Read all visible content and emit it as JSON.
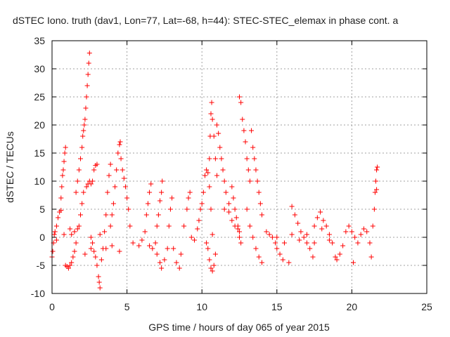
{
  "chart_data": {
    "type": "scatter",
    "title": "dSTEC Iono. truth (dav1, Lon=77, Lat=-68, h=44): STEC-STEC_elemax in phase cont. a",
    "xlabel": "GPS time / hours of day 065 of year 2015",
    "ylabel": "dSTEC  / TECUs",
    "xlim": [
      0,
      25
    ],
    "ylim": [
      -10,
      35
    ],
    "xticks": [
      0,
      5,
      10,
      15,
      20,
      25
    ],
    "yticks": [
      -10,
      -5,
      0,
      5,
      10,
      15,
      20,
      25,
      30,
      35
    ],
    "grid": true,
    "marker": "+",
    "color": "#ff0000",
    "series": [
      {
        "points": [
          [
            0.0,
            -3.5
          ],
          [
            0.05,
            -2.5
          ],
          [
            0.1,
            -1.0
          ],
          [
            0.15,
            0.5
          ],
          [
            0.2,
            1.0
          ],
          [
            0.3,
            2.0
          ],
          [
            0.4,
            3.5
          ],
          [
            0.5,
            4.5
          ],
          [
            0.6,
            4.8
          ],
          [
            0.6,
            7.0
          ],
          [
            0.65,
            9.0
          ],
          [
            0.7,
            11.0
          ],
          [
            0.75,
            12.0
          ],
          [
            0.8,
            13.5
          ],
          [
            0.85,
            15.0
          ],
          [
            0.9,
            16.0
          ],
          [
            0.9,
            -5.0
          ],
          [
            1.0,
            -5.2
          ],
          [
            1.1,
            -5.5
          ],
          [
            1.2,
            -5.0
          ],
          [
            1.3,
            -4.5
          ],
          [
            1.4,
            -3.5
          ],
          [
            1.5,
            -2.5
          ],
          [
            1.6,
            -1.0
          ],
          [
            1.3,
            0.5
          ],
          [
            1.5,
            1.0
          ],
          [
            1.7,
            1.5
          ],
          [
            1.8,
            2.0
          ],
          [
            1.9,
            4.0
          ],
          [
            2.0,
            6.0
          ],
          [
            2.1,
            8.0
          ],
          [
            1.6,
            8.0
          ],
          [
            1.7,
            10.0
          ],
          [
            1.8,
            12.0
          ],
          [
            1.9,
            14.0
          ],
          [
            2.0,
            16.0
          ],
          [
            2.05,
            18.0
          ],
          [
            2.1,
            19.0
          ],
          [
            2.15,
            20.0
          ],
          [
            2.2,
            21.0
          ],
          [
            2.25,
            23.0
          ],
          [
            2.3,
            25.0
          ],
          [
            2.35,
            27.0
          ],
          [
            2.4,
            29.0
          ],
          [
            2.45,
            31.0
          ],
          [
            2.5,
            32.8
          ],
          [
            2.3,
            9.0
          ],
          [
            2.4,
            9.5
          ],
          [
            2.5,
            10.0
          ],
          [
            2.6,
            9.5
          ],
          [
            2.7,
            10.0
          ],
          [
            2.8,
            12.0
          ],
          [
            2.9,
            12.8
          ],
          [
            3.0,
            13.0
          ],
          [
            2.6,
            0.0
          ],
          [
            2.7,
            -1.0
          ],
          [
            2.8,
            -2.5
          ],
          [
            2.9,
            -3.5
          ],
          [
            3.0,
            -5.0
          ],
          [
            3.1,
            -7.0
          ],
          [
            3.15,
            -8.0
          ],
          [
            3.2,
            -9.0
          ],
          [
            3.3,
            -4.0
          ],
          [
            3.4,
            -2.0
          ],
          [
            3.5,
            1.0
          ],
          [
            3.6,
            4.0
          ],
          [
            3.7,
            8.0
          ],
          [
            3.8,
            11.0
          ],
          [
            3.9,
            13.0
          ],
          [
            3.9,
            2.0
          ],
          [
            4.0,
            4.0
          ],
          [
            4.1,
            6.0
          ],
          [
            4.2,
            9.0
          ],
          [
            4.3,
            12.0
          ],
          [
            4.4,
            15.0
          ],
          [
            4.5,
            16.5
          ],
          [
            4.55,
            17.0
          ],
          [
            4.6,
            14.0
          ],
          [
            4.7,
            12.0
          ],
          [
            4.8,
            10.5
          ],
          [
            4.9,
            9.0
          ],
          [
            5.0,
            7.0
          ],
          [
            5.1,
            5.0
          ],
          [
            5.2,
            2.0
          ],
          [
            0.3,
            -0.5
          ],
          [
            0.8,
            0.5
          ],
          [
            1.2,
            1.5
          ],
          [
            2.2,
            -3.0
          ],
          [
            2.6,
            -2.0
          ],
          [
            3.2,
            0.5
          ],
          [
            3.6,
            -2.0
          ],
          [
            4.0,
            -1.5
          ],
          [
            4.5,
            -2.5
          ],
          [
            5.4,
            -1.0
          ],
          [
            5.8,
            -1.5
          ],
          [
            6.0,
            -0.5
          ],
          [
            6.2,
            1.0
          ],
          [
            6.3,
            4.0
          ],
          [
            6.4,
            6.0
          ],
          [
            6.5,
            8.0
          ],
          [
            6.6,
            9.5
          ],
          [
            6.5,
            -1.5
          ],
          [
            6.7,
            -2.0
          ],
          [
            6.9,
            -1.0
          ],
          [
            7.0,
            2.0
          ],
          [
            7.1,
            4.0
          ],
          [
            7.2,
            6.5
          ],
          [
            7.3,
            8.0
          ],
          [
            7.35,
            10.0
          ],
          [
            7.0,
            -3.0
          ],
          [
            7.2,
            -4.5
          ],
          [
            7.3,
            -5.5
          ],
          [
            7.5,
            -4.0
          ],
          [
            7.7,
            -2.0
          ],
          [
            7.8,
            2.0
          ],
          [
            7.9,
            5.0
          ],
          [
            8.0,
            7.0
          ],
          [
            8.1,
            -2.0
          ],
          [
            8.3,
            -4.5
          ],
          [
            8.5,
            -5.5
          ],
          [
            8.6,
            -3.0
          ],
          [
            8.8,
            2.0
          ],
          [
            9.0,
            5.0
          ],
          [
            9.1,
            7.0
          ],
          [
            9.2,
            8.0
          ],
          [
            9.3,
            0.0
          ],
          [
            9.5,
            -0.5
          ],
          [
            9.7,
            1.5
          ],
          [
            9.8,
            3.0
          ],
          [
            9.9,
            5.0
          ],
          [
            10.0,
            6.0
          ],
          [
            10.1,
            8.0
          ],
          [
            10.2,
            11.0
          ],
          [
            10.3,
            12.0
          ],
          [
            10.4,
            11.5
          ],
          [
            10.5,
            9.0
          ],
          [
            10.6,
            5.0
          ],
          [
            10.7,
            0.5
          ],
          [
            10.5,
            14.0
          ],
          [
            10.55,
            18.0
          ],
          [
            10.6,
            22.0
          ],
          [
            10.65,
            24.0
          ],
          [
            10.7,
            21.0
          ],
          [
            10.8,
            18.0
          ],
          [
            10.9,
            14.0
          ],
          [
            11.0,
            11.0
          ],
          [
            10.3,
            -1.0
          ],
          [
            10.4,
            -2.0
          ],
          [
            10.5,
            -4.0
          ],
          [
            10.6,
            -5.5
          ],
          [
            10.7,
            -6.0
          ],
          [
            10.8,
            -5.0
          ],
          [
            10.9,
            -3.0
          ],
          [
            11.0,
            20.0
          ],
          [
            11.1,
            18.5
          ],
          [
            11.2,
            16.0
          ],
          [
            11.3,
            14.0
          ],
          [
            11.4,
            12.0
          ],
          [
            11.5,
            10.0
          ],
          [
            11.6,
            8.0
          ],
          [
            11.8,
            6.0
          ],
          [
            11.5,
            5.0
          ],
          [
            11.8,
            4.5
          ],
          [
            12.0,
            3.0
          ],
          [
            12.2,
            2.0
          ],
          [
            12.4,
            1.5
          ],
          [
            12.5,
            1.0
          ],
          [
            12.5,
            25.0
          ],
          [
            12.6,
            24.0
          ],
          [
            12.7,
            21.0
          ],
          [
            12.8,
            19.0
          ],
          [
            12.9,
            17.0
          ],
          [
            13.0,
            14.0
          ],
          [
            13.1,
            12.0
          ],
          [
            13.2,
            10.0
          ],
          [
            12.0,
            9.0
          ],
          [
            12.1,
            7.0
          ],
          [
            12.2,
            5.0
          ],
          [
            12.3,
            3.5
          ],
          [
            12.4,
            2.0
          ],
          [
            12.5,
            0.0
          ],
          [
            12.6,
            -1.0
          ],
          [
            13.3,
            19.0
          ],
          [
            13.4,
            16.0
          ],
          [
            13.5,
            14.0
          ],
          [
            13.6,
            12.0
          ],
          [
            13.7,
            10.0
          ],
          [
            13.8,
            8.0
          ],
          [
            13.9,
            6.0
          ],
          [
            14.0,
            4.0
          ],
          [
            13.0,
            5.0
          ],
          [
            13.2,
            2.0
          ],
          [
            13.4,
            0.0
          ],
          [
            13.6,
            -2.0
          ],
          [
            13.8,
            -3.5
          ],
          [
            14.0,
            -4.5
          ],
          [
            14.3,
            1.0
          ],
          [
            14.5,
            0.5
          ],
          [
            14.7,
            0.0
          ],
          [
            14.9,
            -1.0
          ],
          [
            15.0,
            -2.0
          ],
          [
            15.2,
            -3.0
          ],
          [
            15.4,
            -4.0
          ],
          [
            15.8,
            -4.5
          ],
          [
            16.0,
            5.5
          ],
          [
            16.2,
            4.0
          ],
          [
            16.4,
            2.5
          ],
          [
            16.6,
            1.0
          ],
          [
            16.8,
            0.0
          ],
          [
            17.0,
            -1.0
          ],
          [
            17.2,
            -2.0
          ],
          [
            17.4,
            -3.5
          ],
          [
            17.5,
            2.0
          ],
          [
            17.7,
            3.5
          ],
          [
            17.9,
            4.5
          ],
          [
            18.1,
            3.0
          ],
          [
            18.3,
            2.0
          ],
          [
            18.5,
            0.5
          ],
          [
            18.7,
            -1.0
          ],
          [
            18.9,
            -3.5
          ],
          [
            19.0,
            -4.0
          ],
          [
            19.2,
            -3.0
          ],
          [
            19.4,
            -1.5
          ],
          [
            19.6,
            1.0
          ],
          [
            19.8,
            2.0
          ],
          [
            20.0,
            1.0
          ],
          [
            20.2,
            0.0
          ],
          [
            20.1,
            -4.5
          ],
          [
            20.4,
            -1.0
          ],
          [
            20.6,
            0.5
          ],
          [
            20.8,
            1.5
          ],
          [
            21.0,
            1.0
          ],
          [
            21.2,
            -1.0
          ],
          [
            21.3,
            -3.5
          ],
          [
            21.4,
            2.0
          ],
          [
            21.5,
            5.0
          ],
          [
            21.55,
            8.0
          ],
          [
            21.6,
            10.0
          ],
          [
            21.65,
            12.0
          ],
          [
            21.7,
            12.5
          ],
          [
            21.65,
            8.5
          ],
          [
            15.0,
            0.0
          ],
          [
            15.5,
            -1.0
          ],
          [
            16.0,
            0.5
          ],
          [
            16.5,
            -0.5
          ],
          [
            17.0,
            0.5
          ],
          [
            17.5,
            -1.0
          ],
          [
            18.0,
            1.5
          ],
          [
            18.5,
            -0.5
          ]
        ]
      }
    ]
  }
}
